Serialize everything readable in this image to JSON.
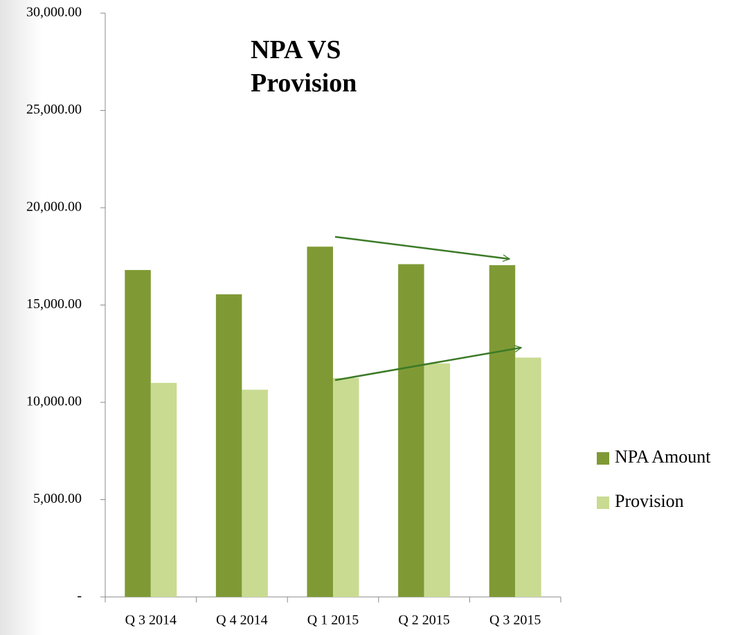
{
  "chart_data": {
    "type": "bar",
    "title": "NPA VS Provision",
    "categories": [
      "Q 3 2014",
      "Q 4 2014",
      "Q 1 2015",
      "Q 2 2015",
      "Q 3 2015"
    ],
    "series": [
      {
        "name": "NPA Amount",
        "color": "#7f9a35",
        "values": [
          16800,
          15550,
          18000,
          17100,
          17050
        ]
      },
      {
        "name": "Provision",
        "color": "#c9db91",
        "values": [
          11000,
          10650,
          11250,
          12000,
          12300
        ]
      }
    ],
    "ylim": [
      0,
      30000
    ],
    "yticks": [
      {
        "value": 0,
        "label": "-"
      },
      {
        "value": 5000,
        "label": "5,000.00"
      },
      {
        "value": 10000,
        "label": "10,000.00"
      },
      {
        "value": 15000,
        "label": "15,000.00"
      },
      {
        "value": 20000,
        "label": "20,000.00"
      },
      {
        "value": 25000,
        "label": "25,000.00"
      },
      {
        "value": 30000,
        "label": "30,000.00"
      }
    ],
    "legend": "right"
  }
}
